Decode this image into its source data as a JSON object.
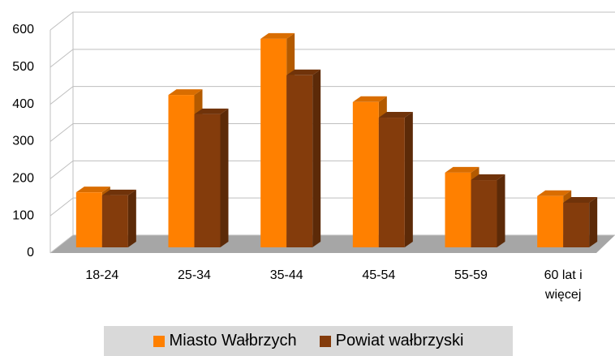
{
  "chart_data": {
    "type": "bar3d",
    "categories": [
      "18-24",
      "25-34",
      "35-44",
      "45-54",
      "55-59",
      "60 lat i więcej"
    ],
    "series": [
      {
        "name": "Miasto Wałbrzych",
        "color": "#ff8000",
        "values": [
          148,
          410,
          561,
          391,
          201,
          138
        ]
      },
      {
        "name": "Powiat wałbrzyski",
        "color": "#843c0c",
        "values": [
          140,
          358,
          463,
          349,
          181,
          120
        ]
      }
    ],
    "ylim": [
      0,
      600
    ],
    "yticks": [
      0,
      100,
      200,
      300,
      400,
      500,
      600
    ],
    "grid": true,
    "legend": "bottom"
  }
}
